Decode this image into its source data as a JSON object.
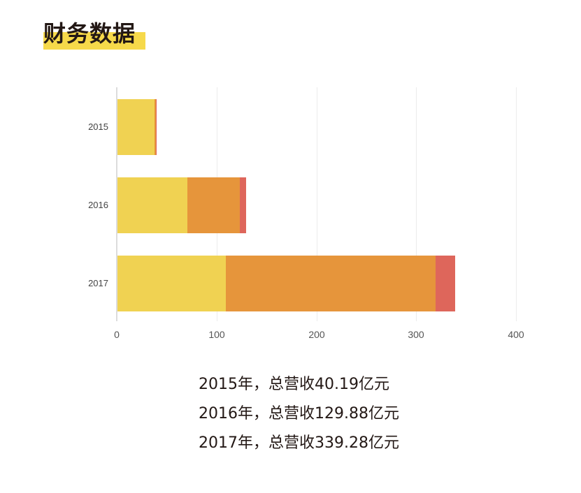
{
  "title": "财务数据",
  "colors": {
    "title_highlight": "#f6d94a",
    "series_1": "#f0d252",
    "series_2": "#e6953b",
    "series_3": "#de665b",
    "grid": "#ececec"
  },
  "chart_data": {
    "type": "bar",
    "orientation": "horizontal",
    "stacked": true,
    "title": "财务数据",
    "categories": [
      "2015",
      "2016",
      "2017"
    ],
    "series": [
      {
        "name": "segment_1",
        "color": "#f0d252",
        "values": [
          37.8,
          70.5,
          109.3
        ]
      },
      {
        "name": "segment_2",
        "color": "#e6953b",
        "values": [
          1.4,
          53.1,
          210.2
        ]
      },
      {
        "name": "segment_3",
        "color": "#de665b",
        "values": [
          0.99,
          6.28,
          19.78
        ]
      }
    ],
    "totals": [
      40.19,
      129.88,
      339.28
    ],
    "xlabel": "",
    "ylabel": "",
    "xlim": [
      0,
      400
    ],
    "xticks": [
      "0",
      "100",
      "200",
      "300",
      "400"
    ],
    "grid": true,
    "legend": "none"
  },
  "summary": [
    "2015年，总营收40.19亿元",
    "2016年，总营收129.88亿元",
    "2017年，总营收339.28亿元"
  ]
}
